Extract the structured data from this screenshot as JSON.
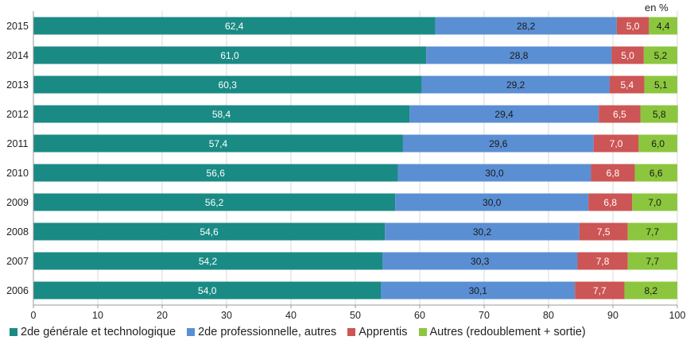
{
  "unit_label": "en %",
  "chart_data": {
    "type": "bar",
    "orientation": "horizontal",
    "stacked": true,
    "categories": [
      "2015",
      "2014",
      "2013",
      "2012",
      "2011",
      "2010",
      "2009",
      "2008",
      "2007",
      "2006"
    ],
    "series": [
      {
        "name": "2de générale et technologique",
        "color": "#1a8a84",
        "values": [
          62.4,
          61.0,
          60.3,
          58.4,
          57.4,
          56.6,
          56.2,
          54.6,
          54.2,
          54.0
        ],
        "labels": [
          "62,4",
          "61,0",
          "60,3",
          "58,4",
          "57,4",
          "56,6",
          "56,2",
          "54,6",
          "54,2",
          "54,0"
        ],
        "label_color": "#ffffff"
      },
      {
        "name": "2de professionnelle, autres",
        "color": "#5b8fd4",
        "values": [
          28.2,
          28.8,
          29.2,
          29.4,
          29.6,
          30.0,
          30.0,
          30.2,
          30.3,
          30.1
        ],
        "labels": [
          "28,2",
          "28,8",
          "29,2",
          "29,4",
          "29,6",
          "30,0",
          "30,0",
          "30,2",
          "30,3",
          "30,1"
        ],
        "label_color": "#1a1a1a"
      },
      {
        "name": "Apprentis",
        "color": "#cc5555",
        "values": [
          5.0,
          5.0,
          5.4,
          6.5,
          7.0,
          6.8,
          6.8,
          7.5,
          7.8,
          7.7
        ],
        "labels": [
          "5,0",
          "5,0",
          "5,4",
          "6,5",
          "7,0",
          "6,8",
          "6,8",
          "7,5",
          "7,8",
          "7,7"
        ],
        "label_color": "#ffffff"
      },
      {
        "name": "Autres (redoublement + sortie)",
        "color": "#8cc63e",
        "values": [
          4.4,
          5.2,
          5.1,
          5.8,
          6.0,
          6.6,
          7.0,
          7.7,
          7.7,
          8.2
        ],
        "labels": [
          "4,4",
          "5,2",
          "5,1",
          "5,8",
          "6,0",
          "6,6",
          "7,0",
          "7,7",
          "7,7",
          "8,2"
        ],
        "label_color": "#1a1a1a"
      }
    ],
    "xlim": [
      0,
      100
    ],
    "xticks": [
      "0",
      "10",
      "20",
      "30",
      "40",
      "50",
      "60",
      "70",
      "80",
      "90",
      "100"
    ],
    "grid": true,
    "legend_position": "bottom"
  }
}
